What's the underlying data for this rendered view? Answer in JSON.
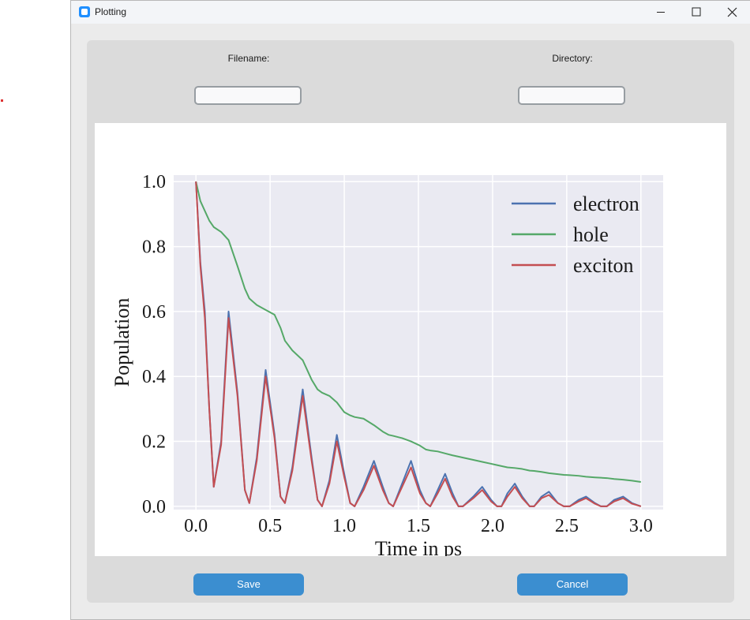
{
  "window": {
    "title": "Plotting"
  },
  "form": {
    "filename_label": "Filename:",
    "directory_label": "Directory:"
  },
  "buttons": {
    "save": "Save",
    "cancel": "Cancel"
  },
  "chart_data": {
    "type": "line",
    "xlabel": "Time in ps",
    "ylabel": "Population",
    "x": [
      0,
      0.03,
      0.06,
      0.09,
      0.12,
      0.17,
      0.22,
      0.28,
      0.33,
      0.36,
      0.41,
      0.47,
      0.53,
      0.57,
      0.6,
      0.65,
      0.72,
      0.78,
      0.82,
      0.85,
      0.9,
      0.95,
      1.0,
      1.04,
      1.07,
      1.13,
      1.2,
      1.26,
      1.3,
      1.33,
      1.39,
      1.45,
      1.51,
      1.55,
      1.58,
      1.63,
      1.68,
      1.73,
      1.77,
      1.8,
      1.87,
      1.93,
      1.99,
      2.03,
      2.06,
      2.1,
      2.15,
      2.2,
      2.25,
      2.28,
      2.33,
      2.38,
      2.44,
      2.48,
      2.52,
      2.58,
      2.63,
      2.69,
      2.73,
      2.77,
      2.82,
      2.88,
      2.94,
      3.0
    ],
    "series": [
      {
        "name": "electron",
        "color": "#4c72b0",
        "values": [
          1.0,
          0.75,
          0.6,
          0.3,
          0.06,
          0.2,
          0.6,
          0.35,
          0.05,
          0.01,
          0.15,
          0.42,
          0.22,
          0.03,
          0.01,
          0.12,
          0.36,
          0.15,
          0.02,
          0,
          0.08,
          0.22,
          0.1,
          0.01,
          0,
          0.06,
          0.14,
          0.06,
          0.01,
          0,
          0.07,
          0.14,
          0.05,
          0.01,
          0,
          0.05,
          0.1,
          0.04,
          0,
          0,
          0.03,
          0.06,
          0.02,
          0,
          0,
          0.04,
          0.07,
          0.03,
          0,
          0,
          0.03,
          0.045,
          0.01,
          0,
          0,
          0.02,
          0.03,
          0.01,
          0,
          0,
          0.02,
          0.03,
          0.01,
          0
        ]
      },
      {
        "name": "hole",
        "color": "#55a868",
        "values": [
          1.0,
          0.94,
          0.91,
          0.88,
          0.86,
          0.845,
          0.82,
          0.74,
          0.67,
          0.64,
          0.62,
          0.605,
          0.59,
          0.55,
          0.51,
          0.48,
          0.45,
          0.39,
          0.36,
          0.35,
          0.34,
          0.32,
          0.29,
          0.28,
          0.275,
          0.27,
          0.25,
          0.23,
          0.22,
          0.217,
          0.21,
          0.2,
          0.187,
          0.175,
          0.172,
          0.169,
          0.163,
          0.157,
          0.153,
          0.15,
          0.143,
          0.137,
          0.131,
          0.127,
          0.124,
          0.12,
          0.118,
          0.115,
          0.11,
          0.109,
          0.106,
          0.102,
          0.099,
          0.097,
          0.096,
          0.094,
          0.091,
          0.089,
          0.088,
          0.087,
          0.084,
          0.082,
          0.079,
          0.075
        ]
      },
      {
        "name": "exciton",
        "color": "#c44e52",
        "values": [
          1.0,
          0.74,
          0.58,
          0.3,
          0.06,
          0.19,
          0.58,
          0.34,
          0.05,
          0.01,
          0.14,
          0.4,
          0.21,
          0.03,
          0.01,
          0.11,
          0.34,
          0.14,
          0.02,
          0,
          0.07,
          0.2,
          0.09,
          0.01,
          0,
          0.05,
          0.125,
          0.05,
          0.01,
          0,
          0.06,
          0.12,
          0.04,
          0.01,
          0,
          0.04,
          0.085,
          0.03,
          0,
          0,
          0.025,
          0.05,
          0.015,
          0,
          0,
          0.03,
          0.06,
          0.025,
          0,
          0,
          0.025,
          0.035,
          0.01,
          0,
          0,
          0.015,
          0.025,
          0.008,
          0,
          0,
          0.015,
          0.025,
          0.008,
          0
        ]
      }
    ],
    "xlim": [
      -0.15,
      3.15
    ],
    "ylim": [
      -0.01,
      1.02
    ],
    "xticks": [
      {
        "value": 0,
        "label": "0.0"
      },
      0.5,
      {
        "value": 1,
        "label": "1.0"
      },
      1.5,
      {
        "value": 2,
        "label": "2.0"
      },
      2.5,
      {
        "value": 3,
        "label": "3.0"
      }
    ],
    "yticks": [
      {
        "value": 0,
        "label": "0.0"
      },
      0.2,
      0.4,
      0.6,
      0.8,
      {
        "value": 1,
        "label": "1.0"
      }
    ],
    "grid": true,
    "legend": "upper right"
  }
}
